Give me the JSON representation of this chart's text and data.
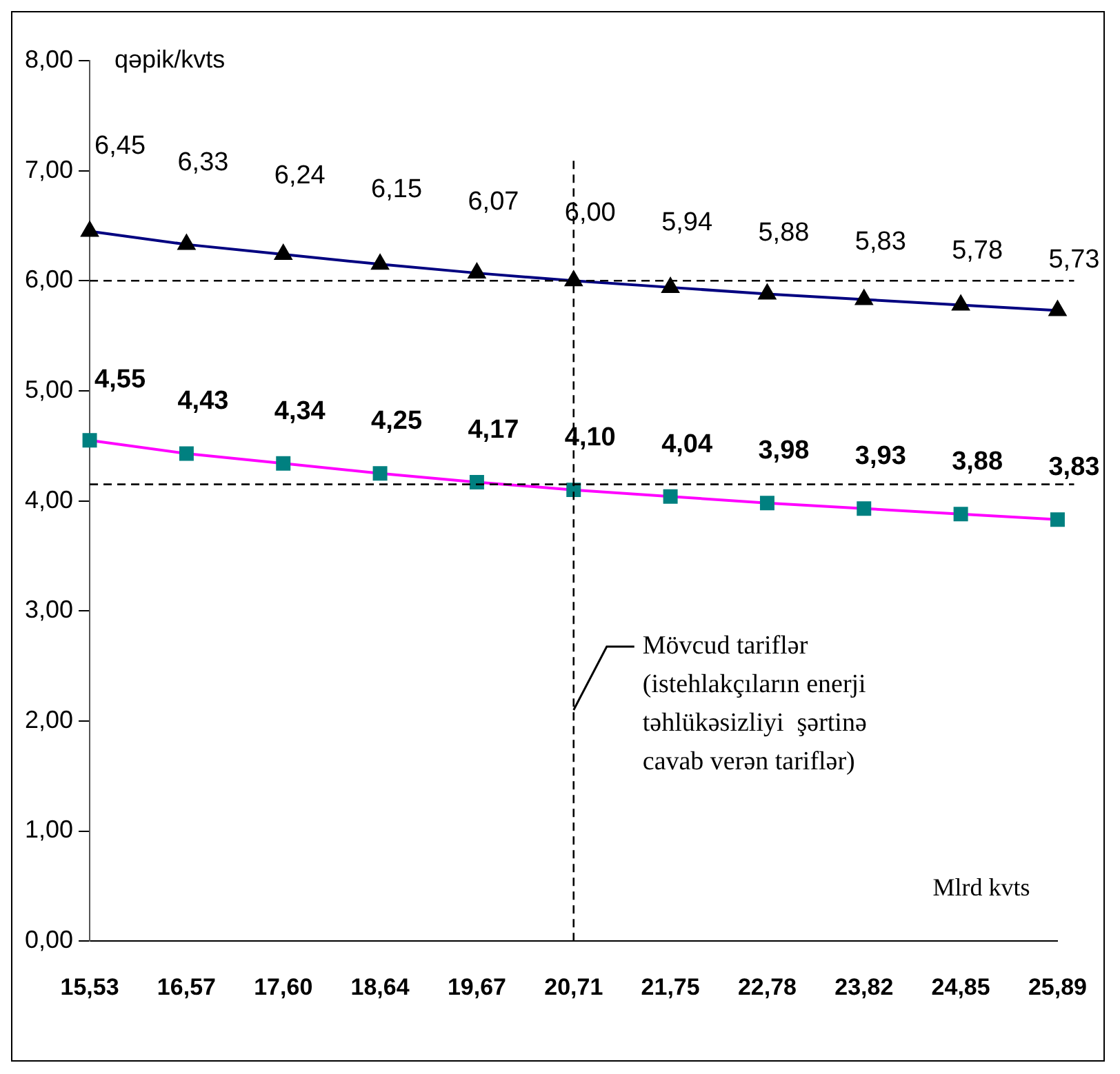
{
  "chart_data": {
    "type": "line",
    "ylabel": "qəpik/kvts",
    "xlabel": "Mlrd kvts",
    "categories": [
      "15,53",
      "16,57",
      "17,60",
      "18,64",
      "19,67",
      "20,71",
      "21,75",
      "22,78",
      "23,82",
      "24,85",
      "25,89"
    ],
    "ylim": [
      0,
      8
    ],
    "yticks": [
      {
        "value": 0,
        "label": "0,00"
      },
      {
        "value": 1,
        "label": "1,00"
      },
      {
        "value": 2,
        "label": "2,00"
      },
      {
        "value": 3,
        "label": "3,00"
      },
      {
        "value": 4,
        "label": "4,00"
      },
      {
        "value": 5,
        "label": "5,00"
      },
      {
        "value": 6,
        "label": "6,00"
      },
      {
        "value": 7,
        "label": "7,00"
      },
      {
        "value": 8,
        "label": "8,00"
      }
    ],
    "grid": false,
    "legend": false,
    "line_style": "solid",
    "series": [
      {
        "marker": "triangle",
        "color": "#000080",
        "colors": [
          "#000000",
          "#000000",
          "#000000",
          "#000000",
          "#000000",
          "#000000",
          "#000000",
          "#000000",
          "#000000",
          "#000000",
          "#000000"
        ],
        "values": [
          6.45,
          6.33,
          6.24,
          6.15,
          6.07,
          6.0,
          5.94,
          5.88,
          5.83,
          5.78,
          5.73
        ],
        "value_labels": [
          "6,45",
          "6,33",
          "6,24",
          "6,15",
          "6,07",
          "6,00",
          "5,94",
          "5,88",
          "5,83",
          "5,78",
          "5,73"
        ]
      },
      {
        "marker": "square",
        "color": "#ff00ff",
        "colors": [
          "#008080",
          "#008080",
          "#008080",
          "#008080",
          "#008080",
          "#008080",
          "#008080",
          "#008080",
          "#008080",
          "#008080",
          "#008080"
        ],
        "values": [
          4.55,
          4.43,
          4.34,
          4.25,
          4.17,
          4.1,
          4.04,
          3.98,
          3.93,
          3.88,
          3.83
        ],
        "value_labels": [
          "4,55",
          "4,43",
          "4,34",
          "4,25",
          "4,17",
          "4,10",
          "4,04",
          "3,98",
          "3,93",
          "3,88",
          "3,83"
        ]
      }
    ],
    "ref_lines": [
      {
        "axis": "y",
        "value": 6,
        "color": "#000000",
        "line_style": "dashed"
      },
      {
        "axis": "y",
        "value": 4.15,
        "color": "#000000",
        "line_style": "dashed"
      },
      {
        "axis": "x",
        "value": "20,71",
        "color": "#000000",
        "line_style": "dashed"
      }
    ],
    "annotations": [
      {
        "text": "Mövcud tariflər\n(istehlakçıların enerji\ntəhlükəsizliyi  şərtinə\ncavab verən tariflər)",
        "x": "20,71",
        "y": 2.1
      }
    ]
  }
}
